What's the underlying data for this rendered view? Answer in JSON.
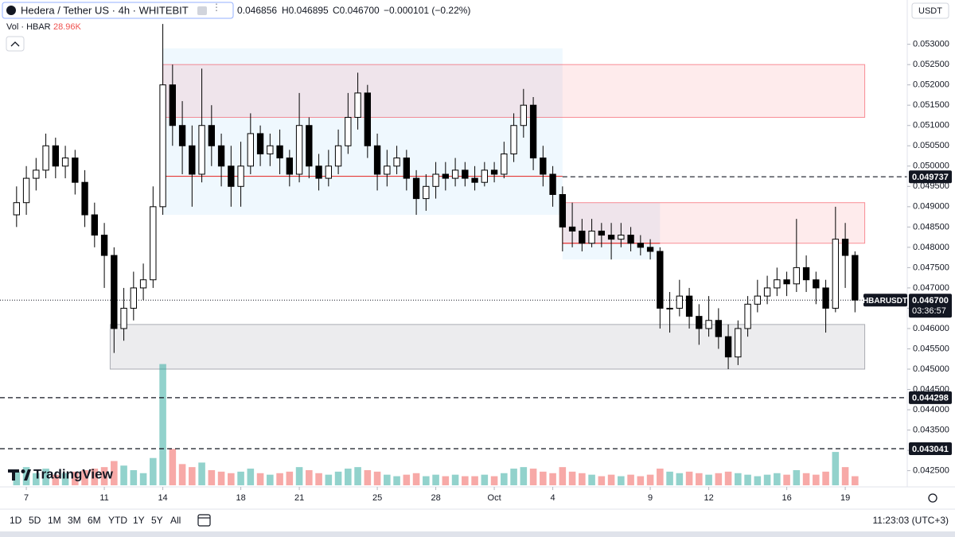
{
  "ui": {
    "symbol": "Hedera / Tether US · 4h · WHITEBIT",
    "ohlc": [
      "0.046856",
      "H0.046895",
      "C0.046700",
      "−0.000101 (−0.22%)"
    ],
    "volume_label": "Vol · HBAR",
    "volume_value": "28.96K",
    "currency": "USDT",
    "ticker": "HBARUSDT",
    "countdown": "03:36:57",
    "logo": "TradingView",
    "ranges": [
      "1D",
      "5D",
      "1M",
      "3M",
      "6M",
      "YTD",
      "1Y",
      "5Y",
      "All"
    ],
    "clock": "11:23:03 (UTC+3)"
  },
  "chart_data": {
    "type": "candlestick",
    "xlim": [
      -1.35,
      45.18
    ],
    "xticks": [
      {
        "value": 0,
        "label": "7"
      },
      {
        "value": 4,
        "label": "11"
      },
      {
        "value": 7,
        "label": "14"
      },
      {
        "value": 11,
        "label": "18"
      },
      {
        "value": 14,
        "label": "21"
      },
      {
        "value": 18,
        "label": "25"
      },
      {
        "value": 21,
        "label": "28"
      },
      {
        "value": 24,
        "label": "Oct"
      },
      {
        "value": 27,
        "label": "4"
      },
      {
        "value": 32,
        "label": "9"
      },
      {
        "value": 35,
        "label": "12"
      },
      {
        "value": 39,
        "label": "16"
      },
      {
        "value": 42,
        "label": "19"
      }
    ],
    "ylim": [
      0.04214,
      0.05409
    ],
    "yticks": [
      {
        "value": 0.0425,
        "label": "0.042500"
      },
      {
        "value": 0.043,
        "label": "0.043000"
      },
      {
        "value": 0.0435,
        "label": "0.043500"
      },
      {
        "value": 0.044,
        "label": "0.044000"
      },
      {
        "value": 0.0445,
        "label": "0.044500"
      },
      {
        "value": 0.045,
        "label": "0.045000"
      },
      {
        "value": 0.0455,
        "label": "0.045500"
      },
      {
        "value": 0.046,
        "label": "0.046000"
      },
      {
        "value": 0.0465,
        "label": "0.046500"
      },
      {
        "value": 0.047,
        "label": "0.047000"
      },
      {
        "value": 0.0475,
        "label": "0.047500"
      },
      {
        "value": 0.048,
        "label": "0.048000"
      },
      {
        "value": 0.0485,
        "label": "0.048500"
      },
      {
        "value": 0.049,
        "label": "0.049000"
      },
      {
        "value": 0.0495,
        "label": "0.049500"
      },
      {
        "value": 0.05,
        "label": "0.050000"
      },
      {
        "value": 0.0505,
        "label": "0.050500"
      },
      {
        "value": 0.051,
        "label": "0.051000"
      },
      {
        "value": 0.0515,
        "label": "0.051500"
      },
      {
        "value": 0.052,
        "label": "0.052000"
      },
      {
        "value": 0.0525,
        "label": "0.052500"
      },
      {
        "value": 0.053,
        "label": "0.053000"
      }
    ],
    "grid": false,
    "up_color": "#ffffff",
    "down_color": "#000000",
    "x": [
      -0.5,
      0,
      0.5,
      1,
      1.5,
      2,
      2.5,
      3,
      3.5,
      4,
      4.5,
      5,
      5.5,
      6,
      6.5,
      7,
      7.5,
      8,
      8.5,
      9,
      9.5,
      10,
      10.5,
      11,
      11.5,
      12,
      12.5,
      13,
      13.5,
      14,
      14.5,
      15,
      15.5,
      16,
      16.5,
      17,
      17.5,
      18,
      18.5,
      19,
      19.5,
      20,
      20.5,
      21,
      21.5,
      22,
      22.5,
      23,
      23.5,
      24,
      24.5,
      25,
      25.5,
      26,
      26.5,
      27,
      27.5,
      28,
      28.5,
      29,
      29.5,
      30,
      30.5,
      31,
      31.5,
      32,
      32.5,
      33,
      33.5,
      34,
      34.5,
      35,
      35.5,
      36,
      36.5,
      37,
      37.5,
      38,
      38.5,
      39,
      39.5,
      40,
      40.5,
      41,
      41.5,
      42,
      42.5
    ],
    "open": [
      0.0488,
      0.0491,
      0.0497,
      0.0499,
      0.0505,
      0.05,
      0.0502,
      0.0496,
      0.0488,
      0.0483,
      0.0478,
      0.046,
      0.0465,
      0.047,
      0.0472,
      0.049,
      0.052,
      0.051,
      0.0505,
      0.0498,
      0.051,
      0.0505,
      0.05,
      0.0495,
      0.05,
      0.0508,
      0.0503,
      0.0505,
      0.0502,
      0.0498,
      0.051,
      0.05,
      0.0497,
      0.05,
      0.0505,
      0.0512,
      0.0518,
      0.0505,
      0.0498,
      0.05,
      0.0502,
      0.0497,
      0.0492,
      0.0495,
      0.0498,
      0.0497,
      0.0499,
      0.0497,
      0.0496,
      0.0499,
      0.0498,
      0.0503,
      0.051,
      0.0515,
      0.0502,
      0.0498,
      0.0493,
      0.0485,
      0.0484,
      0.0481,
      0.0484,
      0.0483,
      0.0482,
      0.0483,
      0.0481,
      0.048,
      0.0479,
      0.0465,
      0.0465,
      0.0468,
      0.0463,
      0.046,
      0.0462,
      0.0458,
      0.0453,
      0.046,
      0.0466,
      0.0468,
      0.047,
      0.0472,
      0.0471,
      0.0475,
      0.0472,
      0.047,
      0.0465,
      0.0482,
      0.0478
    ],
    "high": [
      0.0495,
      0.05,
      0.0502,
      0.0508,
      0.0507,
      0.0505,
      0.0504,
      0.0499,
      0.0491,
      0.0486,
      0.048,
      0.047,
      0.0474,
      0.0476,
      0.0495,
      0.0535,
      0.0525,
      0.0516,
      0.051,
      0.0524,
      0.0515,
      0.0508,
      0.0505,
      0.0506,
      0.0513,
      0.051,
      0.0508,
      0.0509,
      0.0504,
      0.0518,
      0.0512,
      0.0503,
      0.0504,
      0.0509,
      0.0518,
      0.0523,
      0.052,
      0.0508,
      0.0504,
      0.0505,
      0.0504,
      0.0499,
      0.0498,
      0.0501,
      0.0501,
      0.0502,
      0.0501,
      0.05,
      0.0501,
      0.0501,
      0.0506,
      0.0513,
      0.0519,
      0.0517,
      0.0505,
      0.05,
      0.0495,
      0.0491,
      0.0487,
      0.0487,
      0.0486,
      0.0486,
      0.0486,
      0.0485,
      0.0483,
      0.0482,
      0.048,
      0.0469,
      0.0472,
      0.047,
      0.0466,
      0.0468,
      0.0465,
      0.0461,
      0.0462,
      0.0468,
      0.0472,
      0.0473,
      0.0475,
      0.0474,
      0.0487,
      0.0478,
      0.0474,
      0.0472,
      0.049,
      0.0486,
      0.0479
    ],
    "low": [
      0.0485,
      0.0488,
      0.0494,
      0.0497,
      0.0497,
      0.0497,
      0.0493,
      0.0485,
      0.048,
      0.047,
      0.0454,
      0.0457,
      0.0462,
      0.0467,
      0.047,
      0.0488,
      0.0505,
      0.0498,
      0.049,
      0.0496,
      0.05,
      0.0495,
      0.049,
      0.049,
      0.0498,
      0.05,
      0.05,
      0.0498,
      0.0495,
      0.0496,
      0.0497,
      0.0494,
      0.0495,
      0.0498,
      0.0503,
      0.0509,
      0.0502,
      0.0494,
      0.0495,
      0.0498,
      0.0494,
      0.0488,
      0.0489,
      0.0492,
      0.0494,
      0.0495,
      0.0495,
      0.0494,
      0.0495,
      0.0496,
      0.0497,
      0.0501,
      0.0507,
      0.0499,
      0.0495,
      0.049,
      0.0479,
      0.048,
      0.0479,
      0.048,
      0.048,
      0.0477,
      0.048,
      0.0479,
      0.0478,
      0.0477,
      0.046,
      0.0459,
      0.0463,
      0.046,
      0.0456,
      0.0458,
      0.0455,
      0.045,
      0.0451,
      0.0458,
      0.0464,
      0.0466,
      0.0468,
      0.0468,
      0.0469,
      0.0469,
      0.0466,
      0.0459,
      0.0464,
      0.047,
      0.0464
    ],
    "close": [
      0.0491,
      0.0497,
      0.0499,
      0.0505,
      0.05,
      0.0502,
      0.0496,
      0.0488,
      0.0483,
      0.0478,
      0.046,
      0.0465,
      0.047,
      0.0472,
      0.049,
      0.052,
      0.051,
      0.0505,
      0.0498,
      0.051,
      0.0505,
      0.05,
      0.0495,
      0.05,
      0.0508,
      0.0503,
      0.0505,
      0.0502,
      0.0498,
      0.051,
      0.05,
      0.0497,
      0.05,
      0.0505,
      0.0512,
      0.0518,
      0.0505,
      0.0498,
      0.05,
      0.0502,
      0.0497,
      0.0492,
      0.0495,
      0.0498,
      0.0497,
      0.0499,
      0.0497,
      0.0496,
      0.0499,
      0.0498,
      0.0503,
      0.051,
      0.0515,
      0.0502,
      0.0498,
      0.0493,
      0.0485,
      0.0484,
      0.0481,
      0.0484,
      0.0483,
      0.0482,
      0.0483,
      0.0481,
      0.048,
      0.0479,
      0.0465,
      0.0465,
      0.0468,
      0.0463,
      0.046,
      0.0462,
      0.0458,
      0.0453,
      0.046,
      0.0466,
      0.0468,
      0.047,
      0.0472,
      0.0471,
      0.0475,
      0.0472,
      0.047,
      0.0465,
      0.0482,
      0.0478,
      0.0467
    ],
    "volume_lim": [
      0,
      420
    ],
    "volume": [
      45,
      60,
      40,
      55,
      35,
      40,
      45,
      50,
      55,
      60,
      80,
      65,
      50,
      40,
      90,
      400,
      120,
      70,
      60,
      75,
      50,
      45,
      40,
      45,
      55,
      40,
      35,
      40,
      45,
      60,
      50,
      40,
      35,
      45,
      55,
      60,
      50,
      45,
      35,
      30,
      35,
      40,
      30,
      35,
      30,
      35,
      30,
      30,
      35,
      30,
      40,
      55,
      60,
      55,
      45,
      40,
      60,
      45,
      40,
      35,
      30,
      35,
      30,
      35,
      30,
      35,
      55,
      45,
      40,
      45,
      40,
      35,
      40,
      45,
      40,
      35,
      30,
      35,
      40,
      35,
      50,
      40,
      35,
      45,
      110,
      60,
      30
    ],
    "volume_up_color": "rgba(38,166,154,0.5)",
    "volume_down_color": "rgba(239,83,80,0.5)",
    "zones": [
      {
        "xlim": [
          7,
          27.5
        ],
        "ylim": [
          0.0488,
          0.0529
        ],
        "color": "rgba(33,150,243,0.07)",
        "border": "rgba(33,150,243,0)"
      },
      {
        "xlim": [
          27.5,
          32.5
        ],
        "ylim": [
          0.0477,
          0.0491
        ],
        "color": "rgba(33,150,243,0.07)",
        "border": "rgba(33,150,243,0)"
      },
      {
        "xlim": [
          7,
          43
        ],
        "ylim": [
          0.0512,
          0.0525
        ],
        "color": "rgba(242,54,69,0.1)",
        "border": "rgba(242,54,69,0.55)"
      },
      {
        "xlim": [
          27.5,
          43
        ],
        "ylim": [
          0.0481,
          0.0491
        ],
        "color": "rgba(242,54,69,0.1)",
        "border": "rgba(242,54,69,0.55)"
      },
      {
        "xlim": [
          4.3,
          43
        ],
        "ylim": [
          0.045,
          0.0461
        ],
        "color": "rgba(120,123,134,0.14)",
        "border": "rgba(120,123,134,0.6)"
      }
    ],
    "poc_lines": [
      {
        "value": 0.04975,
        "xlim": [
          7,
          27.5
        ],
        "color": "#e53935"
      },
      {
        "value": 0.0481,
        "xlim": [
          27.5,
          32.5
        ],
        "color": "#e53935"
      }
    ],
    "levels": [
      {
        "value": 0.049737,
        "from": 27.5
      },
      {
        "value": 0.044298,
        "from": -1.35
      },
      {
        "value": 0.043041,
        "from": -1.35
      }
    ],
    "last_price": {
      "value": 0.0467,
      "label": "0.046700"
    }
  }
}
